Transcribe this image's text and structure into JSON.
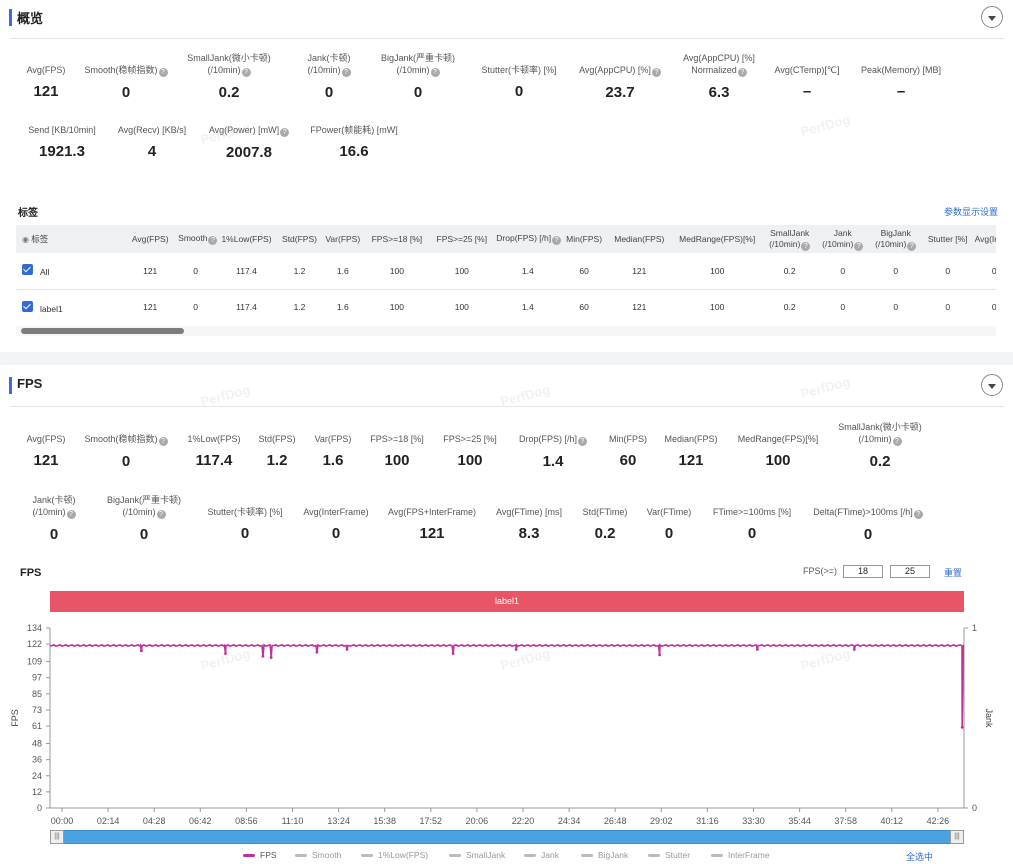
{
  "overview": {
    "title": "概览",
    "metrics_row1": [
      {
        "label": "Avg(FPS)",
        "value": "121",
        "help": false
      },
      {
        "label": "Smooth(稳帧指数)",
        "value": "0",
        "help": true
      },
      {
        "label": "SmallJank(微小卡顿)\n(/10min)",
        "value": "0.2",
        "help": true
      },
      {
        "label": "Jank(卡顿)\n(/10min)",
        "value": "0",
        "help": true
      },
      {
        "label": "BigJank(严重卡顿)\n(/10min)",
        "value": "0",
        "help": true
      },
      {
        "label": "Stutter(卡顿率) [%]",
        "value": "0",
        "help": false
      },
      {
        "label": "Avg(AppCPU) [%]",
        "value": "23.7",
        "help": true
      },
      {
        "label": "Avg(AppCPU) [%]\nNormalized",
        "value": "6.3",
        "help": true
      },
      {
        "label": "Avg(CTemp)[℃]",
        "value": "–",
        "help": false
      },
      {
        "label": "Peak(Memory) [MB]",
        "value": "–",
        "help": false
      }
    ],
    "metrics_row2": [
      {
        "label": "Send [KB/10min]",
        "value": "1921.3",
        "help": false
      },
      {
        "label": "Avg(Recv) [KB/s]",
        "value": "4",
        "help": false
      },
      {
        "label": "Avg(Power) [mW]",
        "value": "2007.8",
        "help": true
      },
      {
        "label": "FPower(帧能耗) [mW]",
        "value": "16.6",
        "help": false
      }
    ]
  },
  "labels": {
    "title": "标签",
    "settings_link": "参数显示设置",
    "columns": [
      "标签",
      "Avg(FPS)",
      "Smooth",
      "1%Low(FPS)",
      "Std(FPS)",
      "Var(FPS)",
      "FPS>=18 [%]",
      "FPS>=25 [%]",
      "Drop(FPS) [/h]",
      "Min(FPS)",
      "Median(FPS)",
      "MedRange(FPS)[%]",
      "SmallJank\n(/10min)",
      "Jank\n(/10min)",
      "BigJank\n(/10min)",
      "Stutter [%]",
      "Avg(InterF"
    ],
    "rows": [
      {
        "name": "All",
        "values": [
          "121",
          "0",
          "117.4",
          "1.2",
          "1.6",
          "100",
          "100",
          "1.4",
          "60",
          "121",
          "100",
          "0.2",
          "0",
          "0",
          "0",
          "0"
        ]
      },
      {
        "name": "label1",
        "values": [
          "121",
          "0",
          "117.4",
          "1.2",
          "1.6",
          "100",
          "100",
          "1.4",
          "60",
          "121",
          "100",
          "0.2",
          "0",
          "0",
          "0",
          "0"
        ]
      }
    ]
  },
  "fps_section": {
    "title": "FPS",
    "metrics_row1": [
      {
        "label": "Avg(FPS)",
        "value": "121",
        "help": false
      },
      {
        "label": "Smooth(稳帧指数)",
        "value": "0",
        "help": true
      },
      {
        "label": "1%Low(FPS)",
        "value": "117.4",
        "help": false
      },
      {
        "label": "Std(FPS)",
        "value": "1.2",
        "help": false
      },
      {
        "label": "Var(FPS)",
        "value": "1.6",
        "help": false
      },
      {
        "label": "FPS>=18 [%]",
        "value": "100",
        "help": false
      },
      {
        "label": "FPS>=25 [%]",
        "value": "100",
        "help": false
      },
      {
        "label": "Drop(FPS) [/h]",
        "value": "1.4",
        "help": true
      },
      {
        "label": "Min(FPS)",
        "value": "60",
        "help": false
      },
      {
        "label": "Median(FPS)",
        "value": "121",
        "help": false
      },
      {
        "label": "MedRange(FPS)[%]",
        "value": "100",
        "help": false
      },
      {
        "label": "SmallJank(微小卡顿)\n(/10min)",
        "value": "0.2",
        "help": true
      }
    ],
    "metrics_row2": [
      {
        "label": "Jank(卡顿)\n(/10min)",
        "value": "0",
        "help": true
      },
      {
        "label": "BigJank(严重卡顿)\n(/10min)",
        "value": "0",
        "help": true
      },
      {
        "label": "Stutter(卡顿率) [%]",
        "value": "0",
        "help": false
      },
      {
        "label": "Avg(InterFrame)",
        "value": "0",
        "help": false
      },
      {
        "label": "Avg(FPS+InterFrame)",
        "value": "121",
        "help": false
      },
      {
        "label": "Avg(FTime) [ms]",
        "value": "8.3",
        "help": false
      },
      {
        "label": "Std(FTime)",
        "value": "0.2",
        "help": false
      },
      {
        "label": "Var(FTime)",
        "value": "0",
        "help": false
      },
      {
        "label": "FTime>=100ms [%]",
        "value": "0",
        "help": false
      },
      {
        "label": "Delta(FTime)>100ms [/h]",
        "value": "0",
        "help": true
      }
    ],
    "chart_title": "FPS",
    "fps_threshold_label": "FPS(>=)",
    "fps_threshold_1": "18",
    "fps_threshold_2": "25",
    "reset_link": "重置",
    "label_band": "label1",
    "select_all": "全选中",
    "watermark": "PerfDog"
  },
  "colors": {
    "accent": "#2f6ad6",
    "fps_line": "#c0309c",
    "label_band": "#e85566",
    "scroll": "#4aa3e0"
  },
  "chart_data": {
    "type": "line",
    "title": "FPS",
    "xlabel": "",
    "ylabel": "FPS",
    "y2label": "Jank",
    "ylim": [
      0,
      134
    ],
    "y_ticks": [
      0,
      12,
      24,
      36,
      48,
      61,
      73,
      85,
      97,
      109,
      122,
      134
    ],
    "y2_ticks": [
      0,
      1
    ],
    "x_ticks": [
      "00:00",
      "02:14",
      "04:28",
      "06:42",
      "08:56",
      "11:10",
      "13:24",
      "15:38",
      "17:52",
      "20:06",
      "22:20",
      "24:34",
      "26:48",
      "29:02",
      "31:16",
      "33:30",
      "35:44",
      "37:58",
      "40:12",
      "42:26"
    ],
    "legend": [
      "FPS",
      "Smooth",
      "1%Low(FPS)",
      "SmallJank",
      "Jank",
      "BigJank",
      "Stutter",
      "InterFrame"
    ],
    "series": [
      {
        "name": "FPS",
        "baseline": 121,
        "dips": [
          [
            0.1,
            117
          ],
          [
            0.192,
            115
          ],
          [
            0.233,
            113
          ],
          [
            0.242,
            112
          ],
          [
            0.292,
            116
          ],
          [
            0.325,
            118
          ],
          [
            0.441,
            115
          ],
          [
            0.51,
            118
          ],
          [
            0.667,
            114
          ],
          [
            0.774,
            118
          ],
          [
            0.88,
            118
          ],
          [
            0.998,
            60
          ]
        ]
      }
    ]
  }
}
